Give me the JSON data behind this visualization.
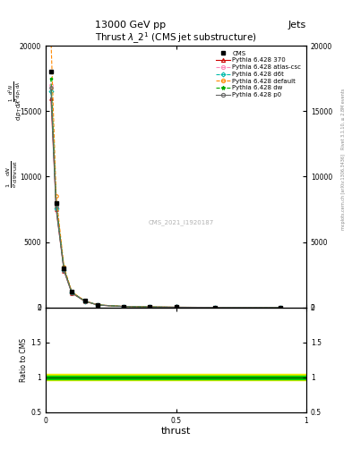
{
  "title_top": "13000 GeV pp",
  "title_right": "Jets",
  "plot_title": "Thrust $\\lambda$_2$^1$ (CMS jet substructure)",
  "xlabel": "thrust",
  "ylabel_ratio": "Ratio to CMS",
  "watermark": "CMS_2021_I1920187",
  "right_label_top": "Rivet 3.1.10, ≥ 2.8M events",
  "right_label_bottom": "mcplots.cern.ch [arXiv:1306.3436]",
  "xlim": [
    0,
    1
  ],
  "ylim_main": [
    0,
    20000
  ],
  "ylim_ratio": [
    0.5,
    2.0
  ],
  "yticks_main": [
    0,
    5000,
    10000,
    15000,
    20000
  ],
  "ytick_labels_main": [
    "0",
    "5000",
    "10000",
    "15000",
    "20000"
  ],
  "yticks_ratio": [
    0.5,
    1.0,
    1.5,
    2.0
  ],
  "ytick_labels_ratio": [
    "0.5",
    "1",
    "1.5",
    "2"
  ],
  "xticks": [
    0,
    0.5,
    1.0
  ],
  "xtick_labels": [
    "0",
    "0.5",
    "1"
  ],
  "cms_data_x": [
    0.02,
    0.04,
    0.07,
    0.1,
    0.15,
    0.2,
    0.3,
    0.4,
    0.5,
    0.65,
    0.9
  ],
  "cms_data_y": [
    18000,
    8000,
    3000,
    1200,
    500,
    200,
    80,
    40,
    20,
    12,
    8
  ],
  "pythia_x": [
    0.02,
    0.04,
    0.07,
    0.1,
    0.15,
    0.2,
    0.3,
    0.4,
    0.5,
    0.65,
    0.9
  ],
  "p370_y": [
    16000,
    7500,
    2800,
    1100,
    480,
    185,
    75,
    38,
    18,
    11,
    7
  ],
  "atlas_csc_y": [
    17000,
    7800,
    2900,
    1150,
    490,
    192,
    77,
    39,
    19,
    11,
    7
  ],
  "d6t_y": [
    16500,
    7600,
    2850,
    1120,
    485,
    188,
    76,
    38,
    19,
    11,
    7
  ],
  "default_y": [
    20500,
    8500,
    3100,
    1200,
    510,
    200,
    82,
    42,
    21,
    12,
    8
  ],
  "dw_y": [
    17500,
    7900,
    2950,
    1160,
    492,
    195,
    78,
    39,
    19,
    11,
    7
  ],
  "p0_y": [
    16800,
    7700,
    2880,
    1130,
    486,
    190,
    76,
    38,
    19,
    11,
    7
  ],
  "color_cms": "#000000",
  "color_370": "#cc0000",
  "color_atlas_csc": "#ff88bb",
  "color_d6t": "#00bbaa",
  "color_default": "#ff8800",
  "color_dw": "#00aa00",
  "color_p0": "#666666",
  "ratio_band_yellow": "#eeee00",
  "ratio_band_green": "#00cc00",
  "ratio_line": "#005500",
  "bg_color": "#ffffff"
}
